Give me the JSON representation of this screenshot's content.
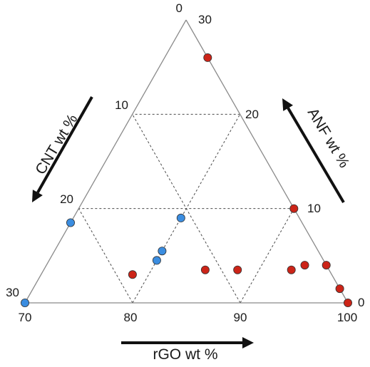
{
  "chart_data": {
    "type": "scatter",
    "plot_kind": "ternary",
    "axes": {
      "bottom": {
        "label": "rGO wt %",
        "range": [
          70,
          100
        ],
        "ticks": [
          "70",
          "80",
          "90",
          "100"
        ]
      },
      "left": {
        "label": "CNT wt %",
        "range": [
          0,
          30
        ],
        "ticks": [
          "0",
          "10",
          "20",
          "30"
        ]
      },
      "right": {
        "label": "ANF wt %",
        "range": [
          0,
          30
        ],
        "ticks": [
          "30",
          "20",
          "10",
          "0"
        ]
      }
    },
    "grid": true,
    "colors": {
      "blue": "#3b8de0",
      "red": "#cc2418",
      "edge": "#8a8a8a",
      "text": "#1a1a1a"
    },
    "series": [
      {
        "color_key": "blue",
        "points": [
          {
            "rGO": 80,
            "CNT": 11,
            "ANF": 9
          },
          {
            "rGO": 80,
            "CNT": 15.5,
            "ANF": 4.5
          },
          {
            "rGO": 80,
            "CNT": 14.5,
            "ANF": 5.5
          },
          {
            "rGO": 70,
            "CNT": 21.5,
            "ANF": 8.5
          },
          {
            "rGO": 70,
            "CNT": 30,
            "ANF": 0
          }
        ]
      },
      {
        "color_key": "red",
        "points": [
          {
            "rGO": 74,
            "CNT": 0,
            "ANF": 26
          },
          {
            "rGO": 90,
            "CNT": 0,
            "ANF": 10
          },
          {
            "rGO": 85,
            "CNT": 11.5,
            "ANF": 3.5
          },
          {
            "rGO": 88,
            "CNT": 8.5,
            "ANF": 3.5
          },
          {
            "rGO": 93,
            "CNT": 3.5,
            "ANF": 3.5
          },
          {
            "rGO": 94,
            "CNT": 2,
            "ANF": 4
          },
          {
            "rGO": 96,
            "CNT": 0,
            "ANF": 4
          },
          {
            "rGO": 78.5,
            "CNT": 18.5,
            "ANF": 3
          },
          {
            "rGO": 98.5,
            "CNT": 0,
            "ANF": 1.5
          },
          {
            "rGO": 100,
            "CNT": 0,
            "ANF": 0
          }
        ]
      }
    ]
  }
}
